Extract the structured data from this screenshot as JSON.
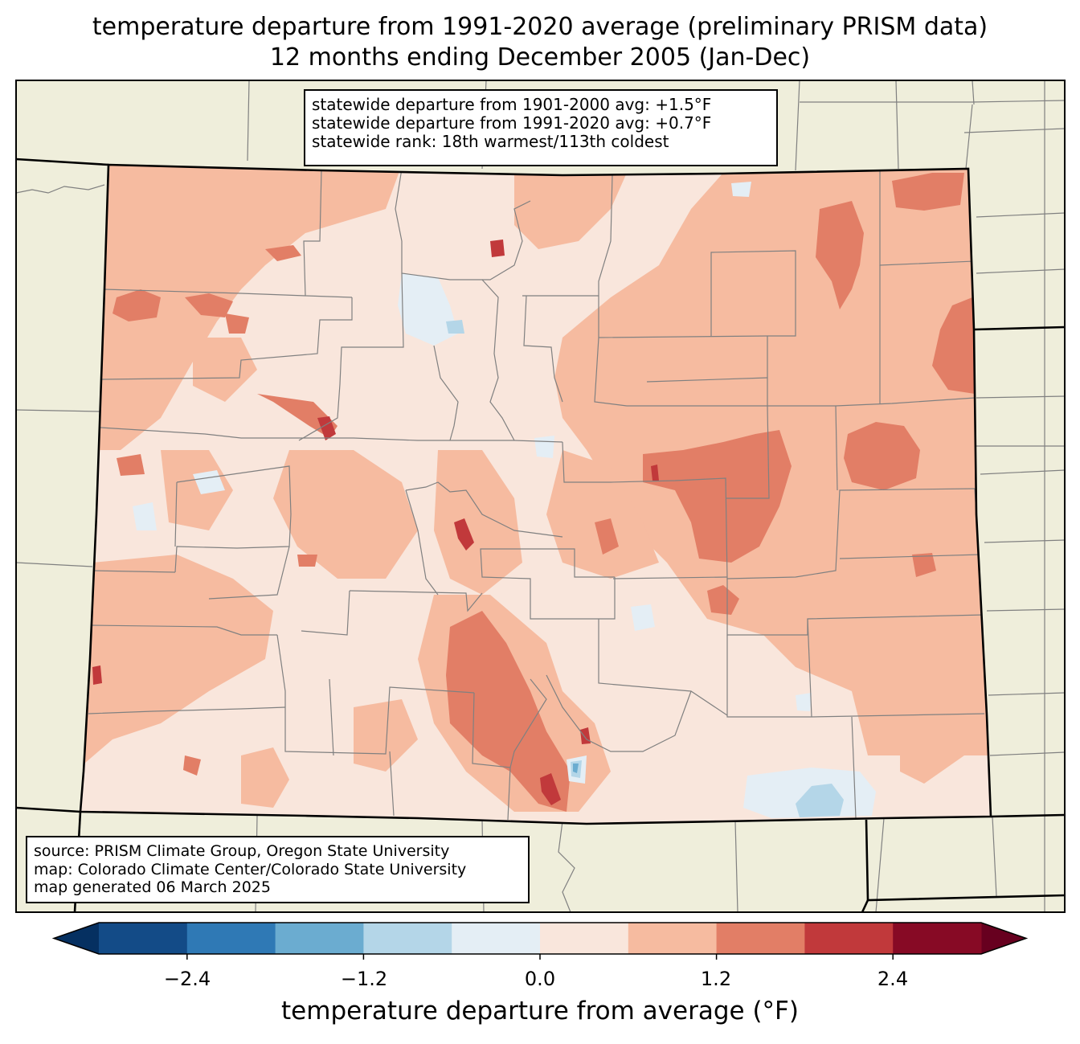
{
  "title": {
    "line1": "temperature departure from 1991-2020 average (preliminary PRISM data)",
    "line2": "12 months ending December 2005 (Jan-Dec)"
  },
  "stats": {
    "line1": "statewide departure from 1901-2000 avg: +1.5°F",
    "line2": "statewide departure from 1991-2020 avg: +0.7°F",
    "line3": "statewide rank: 18th warmest/113th coldest"
  },
  "source": {
    "line1": "source: PRISM Climate Group, Oregon State University",
    "line2": "map: Colorado Climate Center/Colorado State University",
    "line3": "map generated 06 March 2025"
  },
  "colorbar": {
    "label": "temperature departure from average (°F)",
    "ticks": [
      "−2.4",
      "−1.2",
      "0.0",
      "1.2",
      "2.4"
    ],
    "bins": [
      {
        "lo": -3.0,
        "hi": -2.4,
        "color": "#134b87"
      },
      {
        "lo": -2.4,
        "hi": -1.8,
        "color": "#2f79b5"
      },
      {
        "lo": -1.8,
        "hi": -1.2,
        "color": "#6bacd0"
      },
      {
        "lo": -1.2,
        "hi": -0.6,
        "color": "#b4d6e8"
      },
      {
        "lo": -0.6,
        "hi": 0.0,
        "color": "#e4eef5"
      },
      {
        "lo": 0.0,
        "hi": 0.6,
        "color": "#f9e6dc"
      },
      {
        "lo": 0.6,
        "hi": 1.2,
        "color": "#f6bba0"
      },
      {
        "lo": 1.2,
        "hi": 1.8,
        "color": "#e27e66"
      },
      {
        "lo": 1.8,
        "hi": 2.4,
        "color": "#c1393b"
      },
      {
        "lo": 2.4,
        "hi": 3.0,
        "color": "#870a25"
      }
    ],
    "under_color": "#053061",
    "over_color": "#67001f"
  },
  "colors": {
    "land_outside": "#efeedb",
    "county_lines": "#808080",
    "state_lines": "#000000"
  }
}
